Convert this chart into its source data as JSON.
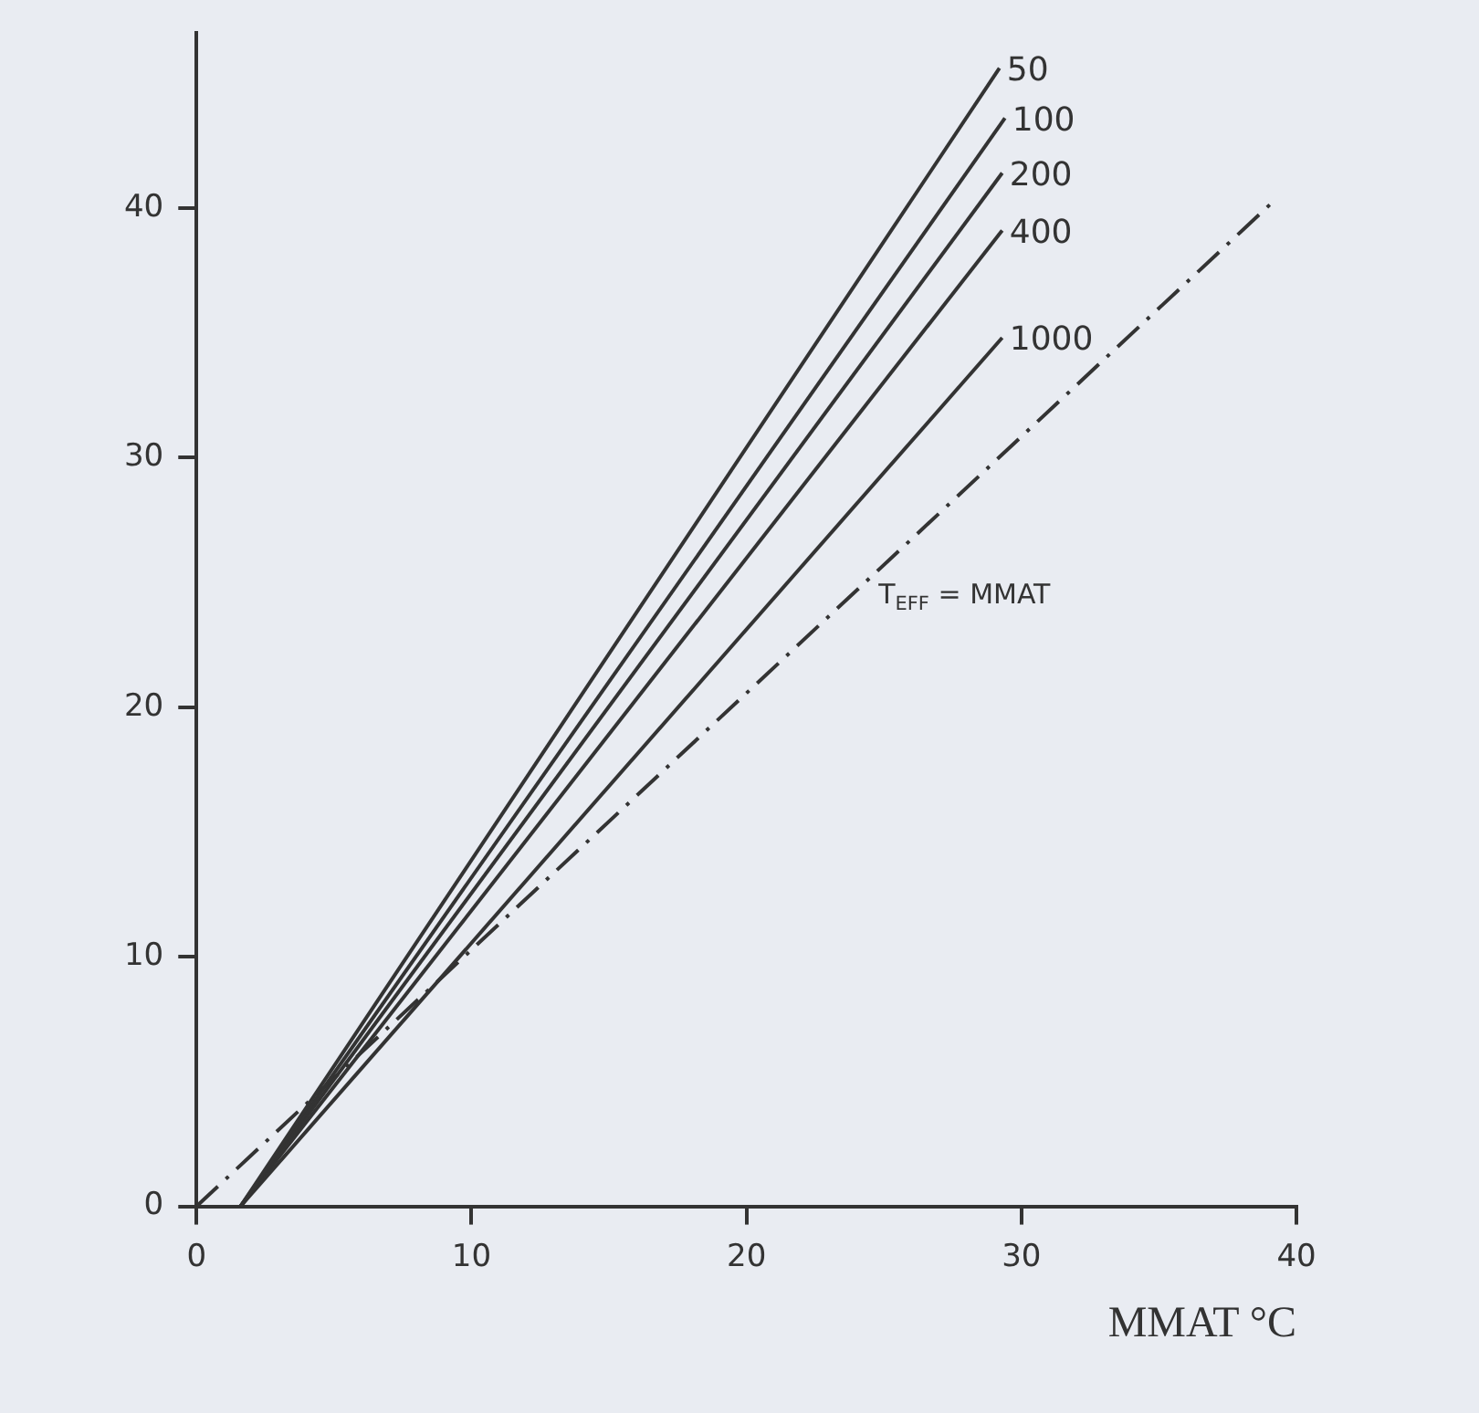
{
  "chart_data": {
    "type": "line",
    "xlabel": "MMAT °C",
    "xlim": [
      0,
      40
    ],
    "xticks": [
      0,
      10,
      20,
      30,
      40
    ],
    "ylim": [
      0,
      47
    ],
    "yticks": [
      0,
      10,
      20,
      30,
      40
    ],
    "grid": false,
    "legend": false,
    "marker": "none",
    "series": [
      {
        "name": "50",
        "color": "#333333",
        "x": [
          1.6,
          29.2
        ],
        "values": [
          0,
          45.6
        ]
      },
      {
        "name": "100",
        "color": "#333333",
        "x": [
          1.6,
          29.4
        ],
        "values": [
          0,
          43.6
        ]
      },
      {
        "name": "200",
        "color": "#333333",
        "x": [
          1.6,
          29.3
        ],
        "values": [
          0,
          41.4
        ]
      },
      {
        "name": "400",
        "color": "#333333",
        "x": [
          1.6,
          29.3
        ],
        "values": [
          0,
          39.1
        ]
      },
      {
        "name": "1000",
        "color": "#333333",
        "x": [
          1.6,
          29.3
        ],
        "values": [
          0,
          34.8
        ]
      },
      {
        "color": "#333333",
        "x": [
          0,
          39.2
        ],
        "values": [
          0,
          40.3
        ],
        "line_style": "dashed"
      }
    ],
    "annotations": [
      "T$_{EFF}$ = MMAT"
    ]
  }
}
